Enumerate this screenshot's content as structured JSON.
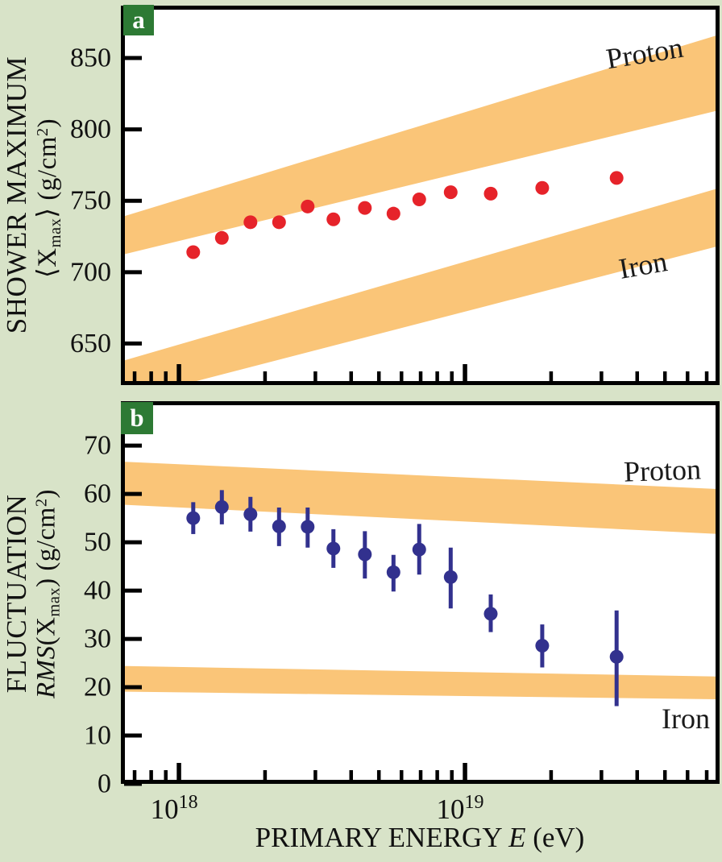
{
  "figure": {
    "bg_color": "#d8e3c8",
    "plot_bg": "#ffffff",
    "axis_color": "#000000",
    "band_color": "#fac578",
    "panel_letter_bg": "#2d7a34",
    "panel_letter_color": "#ffffff"
  },
  "xaxis": {
    "title_pre": "PRIMARY ENERGY ",
    "title_italic": "E",
    "title_post": " (eV)",
    "range_log10": [
      17.797,
      19.89
    ],
    "ticks_labeled": [
      {
        "log10": 18,
        "base": "10",
        "exp": "18"
      },
      {
        "log10": 19,
        "base": "10",
        "exp": "19"
      }
    ],
    "ticks_minor_log10": [
      17.845,
      17.903,
      17.954,
      18.301,
      18.477,
      18.602,
      18.699,
      18.778,
      18.845,
      18.903,
      18.954,
      19.301,
      19.477,
      19.602,
      19.699,
      19.778,
      19.845
    ]
  },
  "chart_data": [
    {
      "panel": "a",
      "type": "scatter",
      "letter": "a",
      "ylabel_outer": "SHOWER MAXIMUM",
      "ylabel_inner": {
        "pre": "⟨X",
        "sub": "max",
        "mid": "⟩ (g/cm",
        "sup": "2",
        "post": ")"
      },
      "ylim": [
        620.9,
        886.7
      ],
      "yticks": [
        650,
        700,
        750,
        800,
        850
      ],
      "marker_color": "#e6232a",
      "x_log10": [
        18.05,
        18.15,
        18.25,
        18.35,
        18.45,
        18.54,
        18.65,
        18.75,
        18.84,
        18.95,
        19.09,
        19.27,
        19.53
      ],
      "y": [
        714,
        724,
        735,
        735,
        746,
        737,
        745,
        741,
        751,
        756,
        755,
        759,
        766
      ],
      "bands": [
        {
          "label": "Proton",
          "left_top": 738.5,
          "left_bottom": 712.0,
          "right_top": 866.5,
          "right_bottom": 813.5
        },
        {
          "label": "Iron",
          "left_top": 637.5,
          "left_bottom": 610.0,
          "right_top": 759.0,
          "right_bottom": 718.5
        }
      ]
    },
    {
      "panel": "b",
      "type": "scatter",
      "letter": "b",
      "ylabel_outer": "FLUCTUATION",
      "ylabel_inner": {
        "italic": "RMS",
        "pre": "(X",
        "sub": "max",
        "mid": ") (g/cm",
        "sup": "2",
        "post": ")"
      },
      "ylim": [
        0,
        79.2
      ],
      "yticks": [
        0,
        10,
        20,
        30,
        40,
        50,
        60,
        70
      ],
      "marker_color": "#32318e",
      "x_log10": [
        18.05,
        18.15,
        18.25,
        18.35,
        18.45,
        18.54,
        18.65,
        18.75,
        18.84,
        18.95,
        19.09,
        19.27,
        19.53
      ],
      "y": [
        55.0,
        57.3,
        55.8,
        53.3,
        53.2,
        48.7,
        47.5,
        43.8,
        48.5,
        42.8,
        35.2,
        28.6,
        26.3
      ],
      "err_up": [
        3.3,
        3.5,
        3.6,
        3.9,
        4.0,
        4.0,
        4.8,
        3.6,
        5.3,
        6.1,
        4.0,
        4.4,
        9.6
      ],
      "err_down": [
        3.3,
        3.6,
        3.6,
        4.1,
        4.3,
        4.0,
        5.0,
        4.0,
        5.2,
        6.5,
        3.8,
        4.5,
        10.2
      ],
      "bands": [
        {
          "label": "Proton",
          "left_top": 66.7,
          "left_bottom": 57.8,
          "right_top": 61.0,
          "right_bottom": 51.7
        },
        {
          "label": "Iron",
          "left_top": 24.4,
          "left_bottom": 19.1,
          "right_top": 22.2,
          "right_bottom": 17.5
        }
      ]
    }
  ]
}
